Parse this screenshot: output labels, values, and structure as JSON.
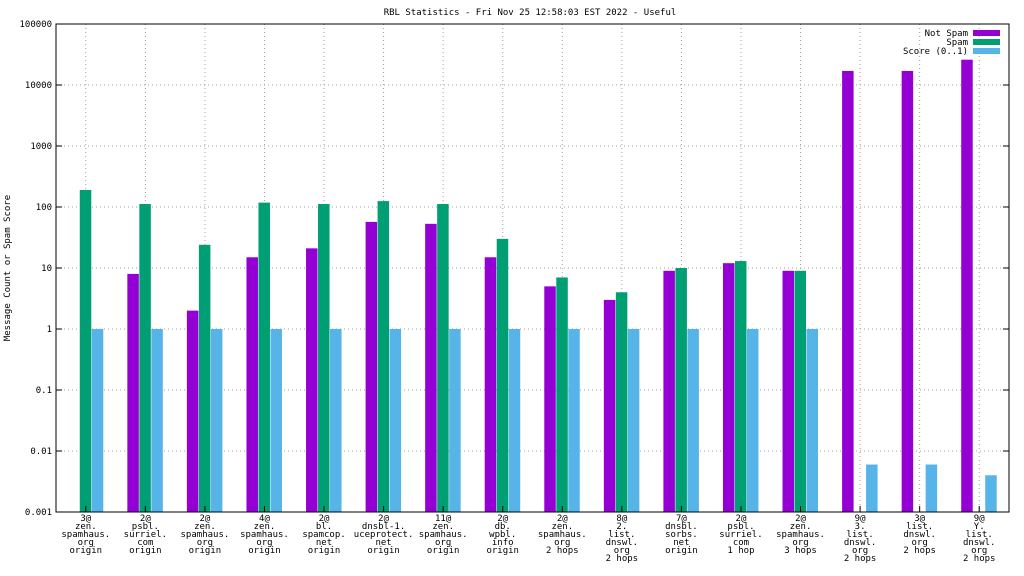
{
  "chart_data": {
    "type": "bar",
    "title": "RBL Statistics - Fri Nov 25 12:58:03 EST 2022 - Useful",
    "xlabel": "",
    "ylabel": "Message Count or Spam Score",
    "yscale": "log",
    "ylim": [
      0.001,
      100000
    ],
    "yticks": [
      "0.001",
      "0.01",
      "0.1",
      "1",
      "10",
      "100",
      "1000",
      "10000",
      "100000"
    ],
    "grid": true,
    "legend_position": "top-right",
    "categories": [
      [
        "3@",
        "zen.",
        "spamhaus.",
        "org",
        "origin"
      ],
      [
        "2@",
        "psbl.",
        "surriel.",
        "com",
        "origin"
      ],
      [
        "2@",
        "zen.",
        "spamhaus.",
        "org",
        "origin"
      ],
      [
        "4@",
        "zen.",
        "spamhaus.",
        "org",
        "origin"
      ],
      [
        "2@",
        "bl.",
        "spamcop.",
        "net",
        "origin"
      ],
      [
        "2@",
        "dnsbl-1.",
        "uceprotect.",
        "net",
        "origin"
      ],
      [
        "11@",
        "zen.",
        "spamhaus.",
        "org",
        "origin"
      ],
      [
        "2@",
        "db.",
        "wpbl.",
        "info",
        "origin"
      ],
      [
        "2@",
        "zen.",
        "spamhaus.",
        "org",
        "2 hops"
      ],
      [
        "8@",
        "2.",
        "list.",
        "dnswl.",
        "org",
        "2 hops"
      ],
      [
        "7@",
        "dnsbl.",
        "sorbs.",
        "net",
        "origin"
      ],
      [
        "2@",
        "psbl.",
        "surriel.",
        "com",
        "1 hop"
      ],
      [
        "2@",
        "zen.",
        "spamhaus.",
        "org",
        "3 hops"
      ],
      [
        "9@",
        "3.",
        "list.",
        "dnswl.",
        "org",
        "2 hops"
      ],
      [
        "3@",
        "list.",
        "dnswl.",
        "org",
        "2 hops"
      ],
      [
        "9@",
        "Y.",
        "list.",
        "dnswl.",
        "org",
        "2 hops"
      ]
    ],
    "series": [
      {
        "name": "Not Spam",
        "color": "#9400d3",
        "values": [
          null,
          8,
          2,
          15,
          21,
          57,
          53,
          15,
          5,
          3,
          9,
          12,
          9,
          17000,
          17000,
          26000
        ]
      },
      {
        "name": "Spam",
        "color": "#009e73",
        "values": [
          190,
          112,
          24,
          118,
          112,
          125,
          112,
          30,
          7,
          4,
          10,
          13,
          9,
          null,
          null,
          null
        ]
      },
      {
        "name": "Score (0..1)",
        "color": "#56b4e9",
        "values": [
          1,
          1,
          1,
          1,
          1,
          1,
          1,
          1,
          1,
          1,
          1,
          1,
          1,
          0.006,
          0.006,
          0.004
        ]
      }
    ]
  }
}
